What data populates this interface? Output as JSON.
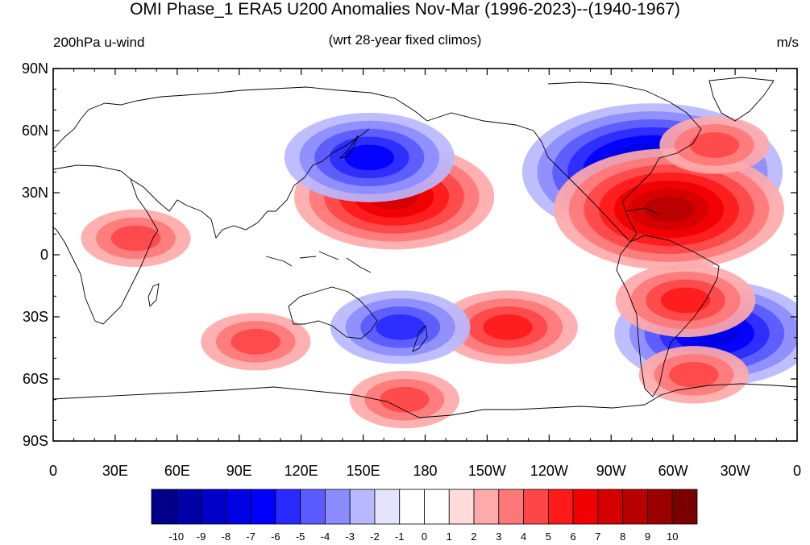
{
  "title": "OMI Phase_1 ERA5 U200 Anomalies Nov-Mar (1996-2023)--(1940-1967)",
  "subtitle_left": "200hPa u-wind",
  "subtitle_center": "(wrt 28-year fixed climos)",
  "subtitle_right": "m/s",
  "axes": {
    "y_ticks": [
      {
        "label": "90N",
        "lat": 90
      },
      {
        "label": "60N",
        "lat": 60
      },
      {
        "label": "30N",
        "lat": 30
      },
      {
        "label": "0",
        "lat": 0
      },
      {
        "label": "30S",
        "lat": -30
      },
      {
        "label": "60S",
        "lat": -60
      },
      {
        "label": "90S",
        "lat": -90
      }
    ],
    "x_ticks": [
      {
        "label": "0",
        "lon": 0
      },
      {
        "label": "30E",
        "lon": 30
      },
      {
        "label": "60E",
        "lon": 60
      },
      {
        "label": "90E",
        "lon": 90
      },
      {
        "label": "120E",
        "lon": 120
      },
      {
        "label": "150E",
        "lon": 150
      },
      {
        "label": "180",
        "lon": 180
      },
      {
        "label": "150W",
        "lon": 210
      },
      {
        "label": "120W",
        "lon": 240
      },
      {
        "label": "90W",
        "lon": 270
      },
      {
        "label": "60W",
        "lon": 300
      },
      {
        "label": "30W",
        "lon": 330
      },
      {
        "label": "0",
        "lon": 360
      }
    ],
    "lon_range": [
      0,
      360
    ],
    "lat_range": [
      -90,
      90
    ]
  },
  "colorbar": {
    "labels": [
      "-10",
      "-9",
      "-8",
      "-7",
      "-6",
      "-5",
      "-4",
      "-3",
      "-2",
      "-1",
      "0",
      "1",
      "2",
      "3",
      "4",
      "5",
      "6",
      "7",
      "8",
      "9",
      "10"
    ],
    "colors": [
      "#00008a",
      "#0000a8",
      "#0000c8",
      "#0000e4",
      "#0000ff",
      "#2a2aff",
      "#5a5aff",
      "#8c8cff",
      "#b8b8ff",
      "#e4e4ff",
      "#ffffff",
      "#ffffff",
      "#ffdcdc",
      "#ffaaaa",
      "#ff7878",
      "#ff4646",
      "#ff1a1a",
      "#f00000",
      "#d40000",
      "#b80000",
      "#9a0000",
      "#7a0000"
    ]
  },
  "chart_data": {
    "type": "heatmap",
    "title": "OMI Phase_1 ERA5 U200 Anomalies Nov-Mar (1996-2023)--(1940-1967)",
    "variable": "200hPa u-wind",
    "units": "m/s",
    "contour_levels": [
      -10,
      -9,
      -8,
      -7,
      -6,
      -5,
      -4,
      -3,
      -2,
      -1,
      0,
      1,
      2,
      3,
      4,
      5,
      6,
      7,
      8,
      9,
      10
    ],
    "anomaly_centers": [
      {
        "lon": 165,
        "lat": 28,
        "value": 5.5
      },
      {
        "lon": 153,
        "lat": 47,
        "value": -5
      },
      {
        "lon": 290,
        "lat": 40,
        "value": -7.5
      },
      {
        "lon": 298,
        "lat": 22,
        "value": 6.5
      },
      {
        "lon": 320,
        "lat": -38,
        "value": -6
      },
      {
        "lon": 306,
        "lat": -22,
        "value": 4
      },
      {
        "lon": 220,
        "lat": -35,
        "value": 3.5
      },
      {
        "lon": 168,
        "lat": -35,
        "value": -4
      },
      {
        "lon": 98,
        "lat": -42,
        "value": 3
      },
      {
        "lon": 170,
        "lat": -70,
        "value": 3
      },
      {
        "lon": 310,
        "lat": -58,
        "value": 3
      },
      {
        "lon": 320,
        "lat": 53,
        "value": 3
      },
      {
        "lon": 40,
        "lat": 8,
        "value": 3
      }
    ]
  }
}
